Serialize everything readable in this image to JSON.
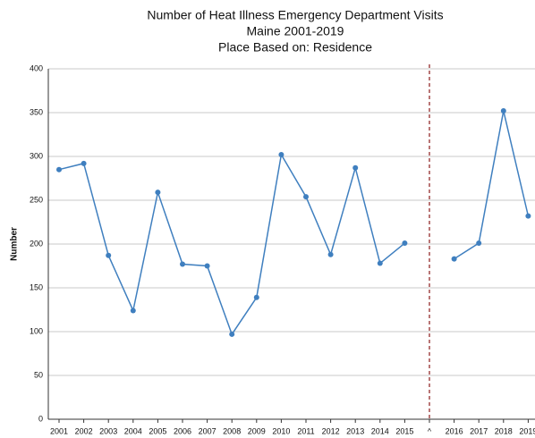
{
  "chart_data": {
    "type": "line",
    "title": [
      "Number of Heat Illness Emergency Department Visits",
      "Maine 2001-2019",
      "Place Based on: Residence"
    ],
    "y_label": "Number",
    "categories": [
      "2001",
      "2002",
      "2003",
      "2004",
      "2005",
      "2006",
      "2007",
      "2008",
      "2009",
      "2010",
      "2011",
      "2012",
      "2013",
      "2014",
      "2015",
      "^",
      "2016",
      "2017",
      "2018",
      "2019"
    ],
    "series": [
      {
        "color": "#3f7fbf",
        "values": [
          285,
          292,
          187,
          124,
          259,
          177,
          175,
          97,
          139,
          302,
          254,
          188,
          287,
          178,
          201,
          null,
          183,
          201,
          352,
          232
        ]
      }
    ],
    "ylim": [
      0,
      400
    ],
    "yticks": [
      0,
      50,
      100,
      150,
      200,
      250,
      300,
      350,
      400
    ],
    "grid": true
  }
}
